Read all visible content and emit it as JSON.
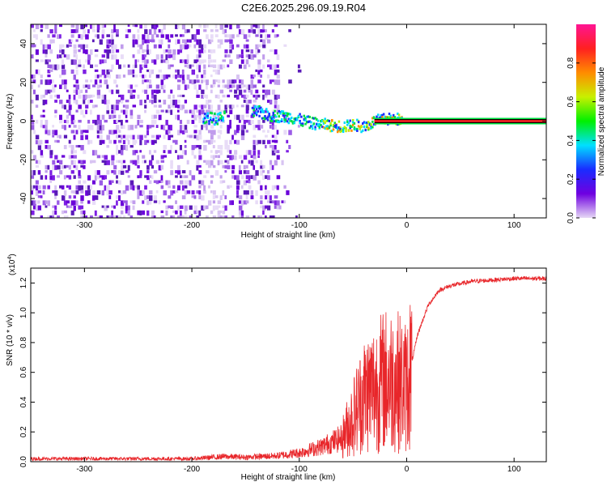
{
  "title": "C2E6.2025.296.09.19.R04",
  "colors": {
    "snr_line": "#e8262a",
    "spectrum_line": "#e01e1e",
    "colorbar_stops": [
      "#e6d8f5",
      "#6f00e0",
      "#1a2cff",
      "#00e0ff",
      "#00f000",
      "#c8f000",
      "#ff8c00",
      "#ff2020",
      "#ff1493"
    ]
  },
  "chart_data": [
    {
      "type": "heatmap",
      "xlabel": "Height of straight line (km)",
      "ylabel": "Frequency (Hz)",
      "xlim": [
        -350,
        130
      ],
      "ylim": [
        -50,
        50
      ],
      "x_ticks": [
        -300,
        -200,
        -100,
        0,
        100
      ],
      "y_ticks": [
        -40,
        -20,
        0,
        20,
        40
      ],
      "colorbar": {
        "label": "Normalized spectral amplitude",
        "range": [
          0,
          1
        ],
        "ticks": [
          0.0,
          0.2,
          0.4,
          0.6,
          0.8
        ]
      },
      "noise_region_x": [
        -350,
        -120
      ],
      "signal_trace": {
        "x": [
          -190,
          -180,
          -140,
          -130,
          -110,
          -90,
          -75,
          -60,
          -50,
          -40,
          -30,
          -20,
          -10,
          0,
          20,
          60,
          100,
          130
        ],
        "freq": [
          2,
          1,
          5,
          3,
          2,
          -1,
          -2,
          -3,
          -2,
          -3,
          0,
          1,
          1,
          0,
          0,
          0,
          0,
          0
        ]
      }
    },
    {
      "type": "line",
      "xlabel": "Height of straight line (km)",
      "ylabel": "SNR (10 * v/v)",
      "y_multiplier_label": "(x10",
      "y_multiplier_exp": "4",
      "y_multiplier_close": ")",
      "xlim": [
        -350,
        130
      ],
      "ylim": [
        0,
        1.3
      ],
      "x_ticks": [
        -300,
        -200,
        -100,
        0,
        100
      ],
      "y_ticks": [
        0.0,
        0.2,
        0.4,
        0.6,
        0.8,
        1.0,
        1.2
      ],
      "envelope": {
        "x": [
          -350,
          -200,
          -170,
          -150,
          -120,
          -100,
          -80,
          -60,
          -50,
          -40,
          -30,
          -20,
          -10,
          0,
          10,
          20,
          30,
          40,
          60,
          80,
          100,
          130
        ],
        "y": [
          0.02,
          0.02,
          0.035,
          0.03,
          0.04,
          0.06,
          0.1,
          0.16,
          0.3,
          0.45,
          0.5,
          0.55,
          0.55,
          0.5,
          0.85,
          1.05,
          1.15,
          1.18,
          1.21,
          1.22,
          1.23,
          1.23
        ]
      }
    }
  ]
}
